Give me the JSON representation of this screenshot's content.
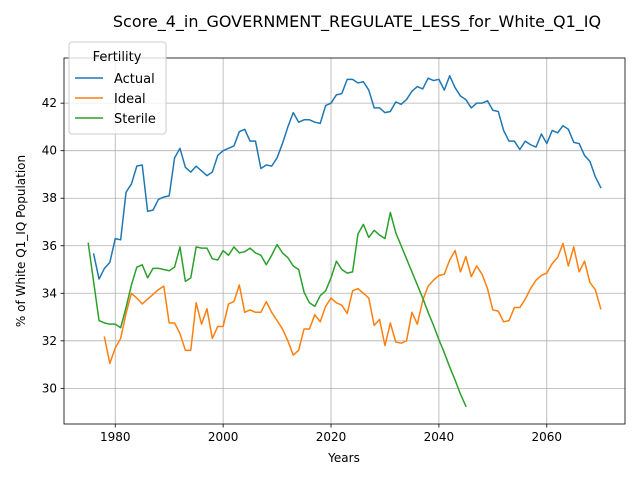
{
  "chart_data": {
    "type": "line",
    "title": "Score_4_in_GOVERNMENT_REGULATE_LESS_for_White_Q1_IQ",
    "xlabel": "Years",
    "ylabel": "% of White Q1_IQ Population",
    "xlim": [
      1970.5,
      2074.5
    ],
    "ylim": [
      28.5,
      43.9
    ],
    "xticks": [
      1980,
      2000,
      2020,
      2040,
      2060
    ],
    "yticks": [
      30,
      32,
      34,
      36,
      38,
      40,
      42
    ],
    "xtick_labels": [
      "1980",
      "2000",
      "2020",
      "2040",
      "2060"
    ],
    "ytick_labels": [
      "30",
      "32",
      "34",
      "36",
      "38",
      "40",
      "42"
    ],
    "grid": true,
    "legend": {
      "title": "Fertility",
      "position": "upper left"
    },
    "series": [
      {
        "name": "Actual",
        "color": "#1f77b4",
        "x": [
          1976,
          1977,
          1978,
          1979,
          1980,
          1981,
          1982,
          1983,
          1984,
          1985,
          1986,
          1987,
          1988,
          1989,
          1990,
          1991,
          1992,
          1993,
          1994,
          1995,
          1996,
          1997,
          1998,
          1999,
          2000,
          2001,
          2002,
          2003,
          2004,
          2005,
          2006,
          2007,
          2008,
          2009,
          2010,
          2011,
          2012,
          2013,
          2014,
          2015,
          2016,
          2017,
          2018,
          2019,
          2020,
          2021,
          2022,
          2023,
          2024,
          2025,
          2026,
          2027,
          2028,
          2029,
          2030,
          2031,
          2032,
          2033,
          2034,
          2035,
          2036,
          2037,
          2038,
          2039,
          2040,
          2041,
          2042,
          2043,
          2044,
          2045,
          2046,
          2047,
          2048,
          2049,
          2050,
          2051,
          2052,
          2053,
          2054,
          2055,
          2056,
          2057,
          2058,
          2059,
          2060,
          2061,
          2062,
          2063,
          2064,
          2065,
          2066,
          2067,
          2068,
          2069,
          2070
        ],
        "values": [
          35.65,
          34.6,
          35.05,
          35.3,
          36.3,
          36.25,
          38.25,
          38.6,
          39.35,
          39.4,
          37.45,
          37.5,
          37.95,
          38.05,
          38.1,
          39.7,
          40.1,
          39.3,
          39.1,
          39.35,
          39.15,
          38.95,
          39.1,
          39.8,
          40.0,
          40.1,
          40.2,
          40.8,
          40.9,
          40.4,
          40.4,
          39.25,
          39.4,
          39.35,
          39.7,
          40.3,
          41.0,
          41.6,
          41.2,
          41.3,
          41.3,
          41.2,
          41.15,
          41.9,
          42.0,
          42.35,
          42.4,
          43.0,
          43.0,
          42.85,
          42.9,
          42.55,
          41.8,
          41.8,
          41.6,
          41.65,
          42.05,
          41.95,
          42.15,
          42.5,
          42.7,
          42.6,
          43.05,
          42.95,
          43.0,
          42.55,
          43.15,
          42.65,
          42.3,
          42.15,
          41.8,
          42.0,
          42.0,
          42.1,
          41.7,
          41.65,
          40.85,
          40.4,
          40.4,
          40.05,
          40.4,
          40.25,
          40.15,
          40.7,
          40.3,
          40.85,
          40.75,
          41.05,
          40.9,
          40.35,
          40.3,
          39.8,
          39.55,
          38.9,
          38.45
        ]
      },
      {
        "name": "Ideal",
        "color": "#ff7f0e",
        "x": [
          1978,
          1979,
          1980,
          1981,
          1982,
          1983,
          1984,
          1985,
          1986,
          1987,
          1988,
          1989,
          1990,
          1991,
          1992,
          1993,
          1994,
          1995,
          1996,
          1997,
          1998,
          1999,
          2000,
          2001,
          2002,
          2003,
          2004,
          2005,
          2006,
          2007,
          2008,
          2009,
          2010,
          2011,
          2012,
          2013,
          2014,
          2015,
          2016,
          2017,
          2018,
          2019,
          2020,
          2021,
          2022,
          2023,
          2024,
          2025,
          2026,
          2027,
          2028,
          2029,
          2030,
          2031,
          2032,
          2033,
          2034,
          2035,
          2036,
          2037,
          2038,
          2039,
          2040,
          2041,
          2042,
          2043,
          2044,
          2045,
          2046,
          2047,
          2048,
          2049,
          2050,
          2051,
          2052,
          2053,
          2054,
          2055,
          2056,
          2057,
          2058,
          2059,
          2060,
          2061,
          2062,
          2063,
          2064,
          2065,
          2066,
          2067,
          2068,
          2069,
          2070
        ],
        "values": [
          32.15,
          31.05,
          31.7,
          32.1,
          33.15,
          34.0,
          33.8,
          33.55,
          33.75,
          33.95,
          34.15,
          34.3,
          32.75,
          32.75,
          32.3,
          31.6,
          31.6,
          33.6,
          32.7,
          33.35,
          32.1,
          32.6,
          32.6,
          33.55,
          33.65,
          34.35,
          33.2,
          33.3,
          33.2,
          33.2,
          33.65,
          33.2,
          32.85,
          32.5,
          32.0,
          31.4,
          31.6,
          32.5,
          32.5,
          33.1,
          32.8,
          33.45,
          33.8,
          33.6,
          33.5,
          33.15,
          34.1,
          34.2,
          34.0,
          33.8,
          32.65,
          32.9,
          31.8,
          32.75,
          31.95,
          31.9,
          32.0,
          33.2,
          32.7,
          33.7,
          34.3,
          34.55,
          34.75,
          34.8,
          35.4,
          35.8,
          34.9,
          35.55,
          34.7,
          35.15,
          34.8,
          34.2,
          33.3,
          33.25,
          32.8,
          32.85,
          33.4,
          33.4,
          33.75,
          34.2,
          34.55,
          34.75,
          34.85,
          35.25,
          35.5,
          36.1,
          35.15,
          35.95,
          34.9,
          35.35,
          34.45,
          34.15,
          33.35
        ]
      },
      {
        "name": "Sterile",
        "color": "#2ca02c",
        "x": [
          1975,
          1977,
          1978,
          1979,
          1980,
          1981,
          1982,
          1983,
          1984,
          1985,
          1986,
          1987,
          1988,
          1989,
          1990,
          1991,
          1992,
          1993,
          1994,
          1995,
          1996,
          1997,
          1998,
          1999,
          2000,
          2001,
          2002,
          2003,
          2004,
          2005,
          2006,
          2007,
          2008,
          2009,
          2010,
          2011,
          2012,
          2013,
          2014,
          2015,
          2016,
          2017,
          2018,
          2019,
          2020,
          2021,
          2022,
          2023,
          2024,
          2025,
          2026,
          2027,
          2028,
          2029,
          2030,
          2031,
          2032,
          2033,
          2034,
          2035,
          2036,
          2037,
          2038,
          2039,
          2040,
          2041,
          2042,
          2043,
          2044,
          2045
        ],
        "values": [
          36.1,
          32.85,
          32.75,
          32.7,
          32.7,
          32.55,
          33.4,
          34.35,
          35.1,
          35.2,
          34.65,
          35.05,
          35.05,
          35.0,
          34.95,
          35.1,
          35.95,
          34.5,
          34.65,
          35.95,
          35.9,
          35.9,
          35.45,
          35.4,
          35.8,
          35.6,
          35.95,
          35.7,
          35.75,
          35.9,
          35.7,
          35.6,
          35.2,
          35.6,
          36.05,
          35.7,
          35.5,
          35.15,
          35.0,
          34.05,
          33.6,
          33.45,
          33.9,
          34.1,
          34.65,
          35.35,
          35.0,
          34.85,
          34.9,
          36.5,
          36.9,
          36.35,
          36.65,
          36.45,
          36.3,
          37.4,
          36.55,
          36.0,
          35.45,
          34.9,
          34.35,
          33.8,
          33.2,
          32.65,
          32.05,
          31.5,
          30.9,
          30.35,
          29.75,
          29.25
        ]
      }
    ]
  }
}
